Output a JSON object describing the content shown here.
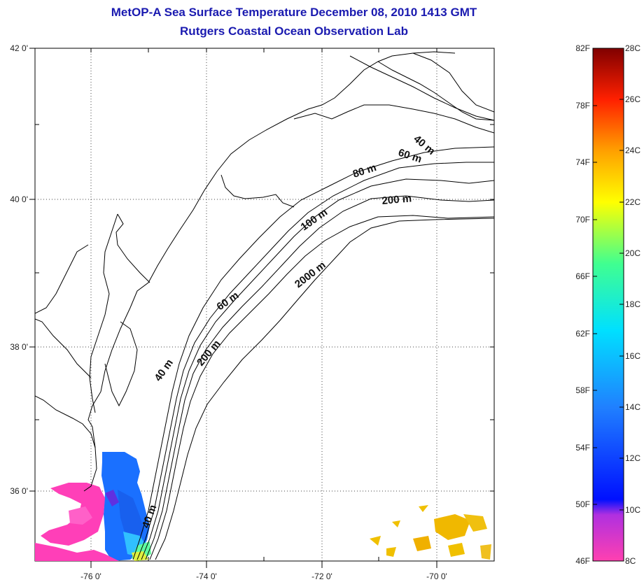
{
  "title_line1": "MetOP-A Sea Surface Temperature December 08, 2010 1413 GMT",
  "title_line2": "Rutgers Coastal Ocean Observation Lab",
  "map": {
    "lat_labels": [
      "42 0'",
      "40 0'",
      "38 0'",
      "36 0'"
    ],
    "lon_labels": [
      "-76 0'",
      "-74 0'",
      "-72 0'",
      "-70 0'"
    ],
    "contour_labels": [
      "40 m",
      "60 m",
      "80 m",
      "100 m",
      "200 m",
      "2000 m",
      "60 m",
      "40 m",
      "200 m",
      "40 m"
    ],
    "land_color": "#ffffff",
    "no_data_color": "#ffffff"
  },
  "colorbar": {
    "fahrenheit_labels": [
      "82F",
      "78F",
      "74F",
      "70F",
      "66F",
      "62F",
      "58F",
      "54F",
      "50F",
      "46F"
    ],
    "celsius_labels": [
      "28C",
      "26C",
      "24C",
      "22C",
      "20C",
      "18C",
      "16C",
      "14C",
      "12C",
      "10C",
      "8C"
    ],
    "colors": [
      "#ff3fb0",
      "#a020e0",
      "#0010ff",
      "#2080ff",
      "#00e0ff",
      "#40ff80",
      "#ffff00",
      "#ffa000",
      "#ff2000",
      "#800000"
    ]
  }
}
